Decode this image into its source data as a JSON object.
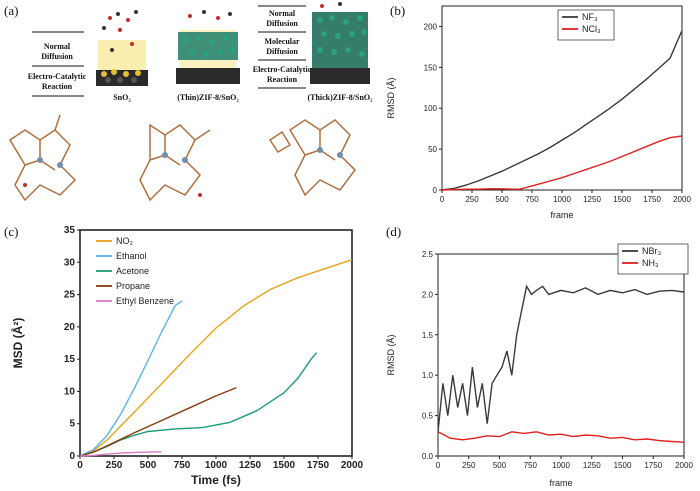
{
  "panels": {
    "a": {
      "label": "(a)",
      "left_group1": [
        "Normal",
        "Diffusion"
      ],
      "left_group2": [
        "Electro-Catalytic",
        "Reaction"
      ],
      "mid_group1": [
        "Normal",
        "Diffusion"
      ],
      "mid_group2": [
        "Molecular",
        "Diffusion"
      ],
      "mid_group3": [
        "Electro-Catalytic",
        "Reaction"
      ],
      "captions": [
        "SnO₂",
        "(Thin)ZIF-8/SnO₂",
        "(Thick)ZIF-8/SnO₂"
      ]
    },
    "b": {
      "label": "(b)"
    },
    "c": {
      "label": "(c)"
    },
    "d": {
      "label": "(d)"
    }
  },
  "colors": {
    "black_line": "#3a3a3a",
    "red_line": "#e02020",
    "no2": "#e8a317",
    "ethanol": "#5ab4e6",
    "acetone": "#1f9a7a",
    "propane": "#8b3a0e",
    "ethylbenzene": "#d67bc3"
  },
  "chart_data": [
    {
      "id": "b",
      "type": "line",
      "xlabel": "frame",
      "ylabel": "RMSD (Å)",
      "xlim": [
        0,
        2000
      ],
      "ylim": [
        0,
        225
      ],
      "xticks": [
        0,
        250,
        500,
        750,
        1000,
        1250,
        1500,
        1750,
        2000
      ],
      "yticks": [
        0,
        50,
        100,
        150,
        200
      ],
      "legend_position": "top-right",
      "series": [
        {
          "name": "NF₃",
          "color": "#3a3a3a",
          "x": [
            0,
            100,
            200,
            300,
            400,
            500,
            600,
            700,
            800,
            900,
            1000,
            1100,
            1200,
            1300,
            1400,
            1500,
            1600,
            1700,
            1800,
            1900,
            2000
          ],
          "y": [
            0,
            2,
            6,
            11,
            17,
            23,
            30,
            37,
            44,
            52,
            61,
            70,
            80,
            90,
            100,
            111,
            123,
            135,
            148,
            161,
            195
          ]
        },
        {
          "name": "NCl₃",
          "color": "#e02020",
          "x": [
            0,
            100,
            200,
            300,
            400,
            500,
            600,
            650,
            700,
            800,
            900,
            1000,
            1100,
            1200,
            1300,
            1400,
            1500,
            1600,
            1700,
            1800,
            1900,
            2000
          ],
          "y": [
            0,
            0.5,
            1,
            1,
            1.5,
            1.5,
            1,
            1,
            3,
            7,
            11,
            15,
            20,
            25,
            30,
            35,
            41,
            47,
            53,
            59,
            64,
            66
          ]
        }
      ]
    },
    {
      "id": "c",
      "type": "line",
      "xlabel": "Time (fs)",
      "ylabel": "MSD (Å²)",
      "xlim": [
        0,
        2000
      ],
      "ylim": [
        0,
        35
      ],
      "xticks": [
        0,
        250,
        500,
        750,
        1000,
        1250,
        1500,
        1750,
        2000
      ],
      "yticks": [
        0,
        5,
        10,
        15,
        20,
        25,
        30,
        35
      ],
      "legend_position": "top-left",
      "series": [
        {
          "name": "NO₂",
          "color": "#e8a317",
          "x": [
            0,
            100,
            200,
            400,
            600,
            800,
            1000,
            1200,
            1400,
            1600,
            1800,
            2000
          ],
          "y": [
            0,
            0.8,
            2.5,
            6.8,
            11.2,
            15.6,
            19.8,
            23.2,
            25.8,
            27.6,
            29,
            30.4
          ]
        },
        {
          "name": "Ethanol",
          "color": "#5ab4e6",
          "x": [
            0,
            100,
            200,
            300,
            400,
            500,
            600,
            700,
            750
          ],
          "y": [
            0,
            1,
            3.2,
            6.5,
            10.5,
            14.8,
            19.2,
            23.3,
            24
          ]
        },
        {
          "name": "Acetone",
          "color": "#1f9a7a",
          "x": [
            0,
            100,
            200,
            300,
            400,
            500,
            700,
            900,
            1100,
            1300,
            1500,
            1600,
            1700,
            1740
          ],
          "y": [
            0,
            0.6,
            1.5,
            2.5,
            3.2,
            3.8,
            4.2,
            4.4,
            5.2,
            7,
            9.8,
            12,
            15,
            16
          ]
        },
        {
          "name": "Propane",
          "color": "#8b3a0e",
          "x": [
            0,
            100,
            200,
            400,
            600,
            800,
            1000,
            1150
          ],
          "y": [
            0,
            0.6,
            1.6,
            3.6,
            5.5,
            7.4,
            9.3,
            10.6
          ]
        },
        {
          "name": "Ethyl Benzene",
          "color": "#d67bc3",
          "x": [
            0,
            100,
            200,
            300,
            400,
            500,
            600
          ],
          "y": [
            0,
            0.1,
            0.3,
            0.45,
            0.55,
            0.6,
            0.65
          ]
        }
      ]
    },
    {
      "id": "d",
      "type": "line",
      "xlabel": "frame",
      "ylabel": "RMSD (Å)",
      "xlim": [
        0,
        2000
      ],
      "ylim": [
        0,
        2.5
      ],
      "xticks": [
        0,
        250,
        500,
        750,
        1000,
        1250,
        1500,
        1750,
        2000
      ],
      "yticks": [
        0.0,
        0.5,
        1.0,
        1.5,
        2.0,
        2.5
      ],
      "legend_position": "top-right",
      "series": [
        {
          "name": "NBr₃",
          "color": "#3a3a3a",
          "x": [
            0,
            40,
            80,
            120,
            160,
            200,
            240,
            280,
            320,
            360,
            400,
            440,
            480,
            520,
            560,
            600,
            640,
            680,
            720,
            760,
            800,
            850,
            900,
            1000,
            1100,
            1200,
            1300,
            1400,
            1500,
            1600,
            1700,
            1800,
            1900,
            2000
          ],
          "y": [
            0.3,
            0.9,
            0.5,
            1.0,
            0.6,
            0.9,
            0.5,
            1.1,
            0.6,
            0.9,
            0.4,
            0.9,
            1.0,
            1.1,
            1.3,
            1.0,
            1.5,
            1.8,
            2.1,
            2.0,
            2.05,
            2.1,
            2.0,
            2.05,
            2.02,
            2.08,
            2.0,
            2.05,
            2.02,
            2.06,
            2.0,
            2.04,
            2.05,
            2.03
          ]
        },
        {
          "name": "NH₃",
          "color": "#e02020",
          "x": [
            0,
            100,
            200,
            300,
            400,
            500,
            600,
            700,
            800,
            900,
            1000,
            1100,
            1200,
            1300,
            1400,
            1500,
            1600,
            1700,
            1800,
            1900,
            2000
          ],
          "y": [
            0.3,
            0.22,
            0.2,
            0.22,
            0.25,
            0.24,
            0.3,
            0.28,
            0.3,
            0.26,
            0.27,
            0.24,
            0.26,
            0.25,
            0.22,
            0.23,
            0.2,
            0.21,
            0.19,
            0.18,
            0.17
          ]
        }
      ]
    }
  ]
}
